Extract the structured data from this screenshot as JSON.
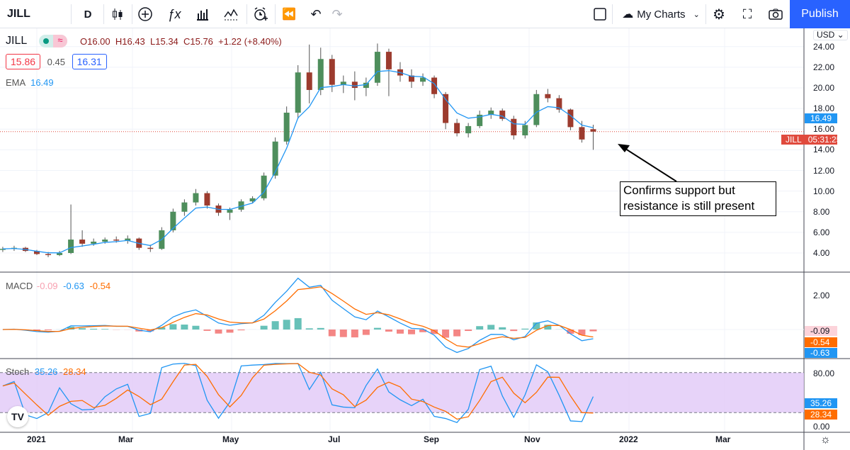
{
  "toolbar": {
    "symbol": "JILL",
    "interval": "D",
    "my_charts": "My Charts",
    "publish": "Publish",
    "icons": [
      "candles-icon",
      "add-icon",
      "fx-icon",
      "bar-chart-icon",
      "indicator-icon",
      "alert-add-icon",
      "replay-icon",
      "undo-icon",
      "redo-icon",
      "layout-icon",
      "cloud-icon",
      "gear-icon",
      "fullscreen-icon",
      "camera-icon"
    ]
  },
  "legend": {
    "symbol": "JILL",
    "ohlc": "O16.00  H16.43  L15.34  C15.76  +1.22 (+8.40%)",
    "bid": "15.86",
    "spread": "0.45",
    "ask": "16.31",
    "ema_label": "EMA",
    "ema_value": "16.49",
    "macd_label": "MACD",
    "macd_hist": "-0.09",
    "macd_line": "-0.63",
    "macd_signal": "-0.54",
    "stoch_label": "Stoch",
    "stoch_k": "35.26",
    "stoch_d": "28.34"
  },
  "price_axis": {
    "currency": "USD",
    "ticks": [
      "24.00",
      "22.00",
      "20.00",
      "18.00",
      "16.00",
      "14.00",
      "12.00",
      "10.00",
      "8.00",
      "6.00",
      "4.00"
    ],
    "ema_tag": "16.49",
    "last_tag_symbol": "JILL",
    "countdown": "05:31:25"
  },
  "macd_axis": {
    "ticks": [
      "2.00"
    ],
    "tags": [
      "-0.09",
      "-0.54",
      "-0.63"
    ]
  },
  "stoch_axis": {
    "ticks": [
      "80.00",
      "0.00"
    ],
    "tags": [
      "35.26",
      "28.34"
    ]
  },
  "time_axis": [
    "2021",
    "Mar",
    "May",
    "Jul",
    "Sep",
    "Nov",
    "2022",
    "Mar"
  ],
  "annotation": "Confirms support but resistance is still present",
  "colors": {
    "up": "#26a69a",
    "down": "#ef5350",
    "ema": "#2196f3",
    "macd": "#2196f3",
    "signal": "#ff6d00",
    "stoch_band": "#e1c8f7",
    "publish": "#2962ff"
  },
  "chart_data": {
    "type": "candlestick",
    "symbol": "JILL",
    "interval": "weekly (approx. from daily chart)",
    "start": "2020-12-11",
    "ylim": [
      3,
      25
    ],
    "ohlc": [
      [
        4.3,
        4.6,
        4.1,
        4.4
      ],
      [
        4.4,
        4.7,
        4.2,
        4.5
      ],
      [
        4.5,
        4.6,
        4.1,
        4.2
      ],
      [
        4.2,
        4.3,
        3.8,
        3.9
      ],
      [
        3.9,
        4.1,
        3.6,
        3.8
      ],
      [
        3.8,
        4.2,
        3.7,
        4.0
      ],
      [
        4.0,
        8.7,
        3.9,
        5.3
      ],
      [
        5.3,
        6.2,
        4.6,
        4.9
      ],
      [
        4.9,
        5.4,
        4.7,
        5.1
      ],
      [
        5.1,
        5.5,
        4.9,
        5.3
      ],
      [
        5.3,
        5.6,
        5.0,
        5.2
      ],
      [
        5.2,
        5.7,
        4.9,
        5.4
      ],
      [
        5.4,
        5.5,
        4.3,
        4.5
      ],
      [
        4.5,
        4.8,
        4.1,
        4.4
      ],
      [
        4.4,
        6.5,
        4.3,
        6.2
      ],
      [
        6.2,
        8.3,
        6.0,
        8.0
      ],
      [
        8.0,
        9.2,
        7.6,
        8.9
      ],
      [
        8.9,
        10.2,
        8.6,
        9.8
      ],
      [
        9.8,
        10.0,
        8.3,
        8.6
      ],
      [
        8.6,
        8.8,
        7.6,
        7.9
      ],
      [
        7.9,
        8.4,
        7.2,
        8.2
      ],
      [
        8.2,
        9.2,
        8.0,
        9.0
      ],
      [
        9.0,
        9.5,
        8.8,
        9.3
      ],
      [
        9.3,
        11.8,
        9.1,
        11.5
      ],
      [
        11.5,
        15.2,
        11.2,
        14.8
      ],
      [
        14.8,
        18.2,
        14.5,
        17.6
      ],
      [
        17.6,
        22.2,
        17.0,
        21.5
      ],
      [
        21.5,
        24.2,
        18.5,
        19.8
      ],
      [
        19.8,
        23.9,
        19.3,
        22.8
      ],
      [
        22.8,
        23.2,
        19.6,
        20.3
      ],
      [
        20.3,
        21.2,
        19.5,
        20.6
      ],
      [
        20.6,
        21.6,
        18.8,
        20.0
      ],
      [
        20.0,
        21.0,
        19.2,
        20.5
      ],
      [
        20.5,
        24.3,
        20.2,
        23.5
      ],
      [
        23.5,
        23.8,
        19.2,
        21.8
      ],
      [
        21.8,
        22.5,
        20.6,
        21.2
      ],
      [
        21.2,
        21.8,
        20.0,
        20.6
      ],
      [
        20.6,
        21.4,
        20.2,
        21.0
      ],
      [
        21.0,
        21.2,
        19.0,
        19.4
      ],
      [
        19.4,
        19.6,
        16.0,
        16.6
      ],
      [
        16.6,
        17.0,
        15.3,
        15.6
      ],
      [
        15.6,
        16.6,
        15.2,
        16.3
      ],
      [
        16.3,
        17.8,
        16.1,
        17.4
      ],
      [
        17.4,
        18.1,
        17.0,
        17.8
      ],
      [
        17.8,
        18.0,
        16.8,
        17.0
      ],
      [
        17.0,
        17.3,
        15.0,
        15.4
      ],
      [
        15.4,
        16.8,
        15.1,
        16.4
      ],
      [
        16.4,
        19.8,
        16.2,
        19.4
      ],
      [
        19.4,
        19.9,
        18.6,
        19.0
      ],
      [
        19.0,
        19.3,
        17.6,
        17.9
      ],
      [
        17.9,
        18.0,
        15.9,
        16.2
      ],
      [
        16.2,
        16.8,
        14.7,
        15.0
      ],
      [
        16.0,
        16.43,
        14.0,
        15.76
      ]
    ],
    "indicators": [
      "EMA",
      "MACD",
      "Stoch"
    ],
    "macd_ylim": [
      -1.5,
      3.2
    ],
    "stoch_ylim": [
      0,
      100
    ],
    "stoch_bands": [
      20,
      80
    ]
  }
}
